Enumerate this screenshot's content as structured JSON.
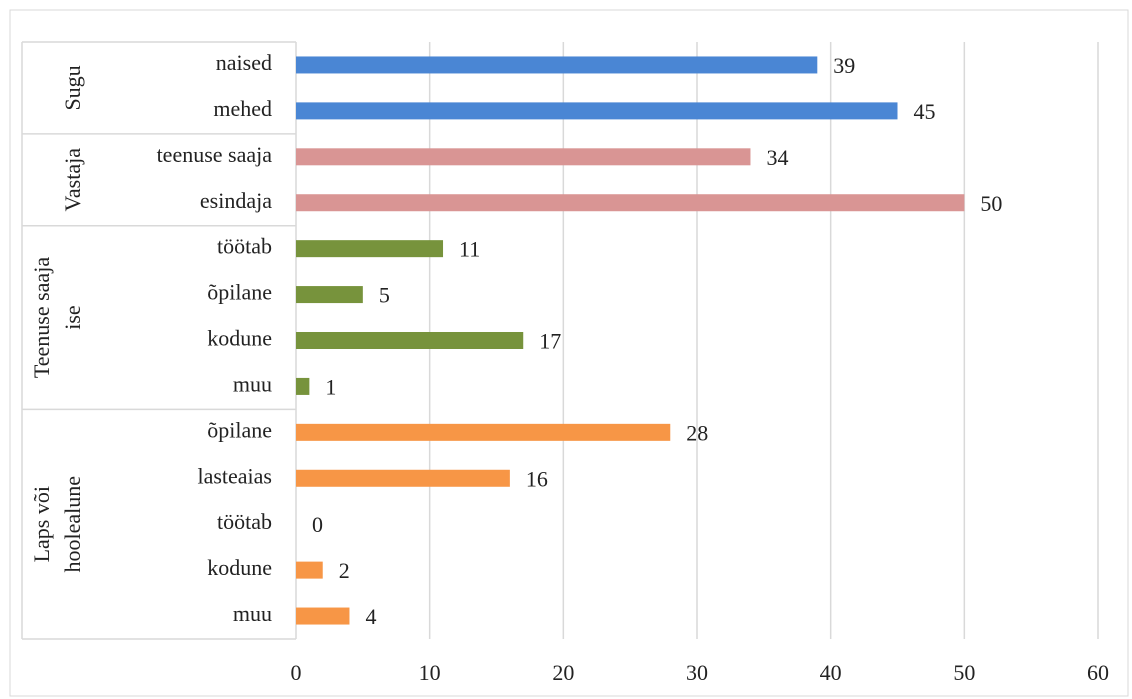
{
  "chart_data": {
    "type": "bar",
    "orientation": "horizontal",
    "groups": [
      {
        "name": [
          "Sugu"
        ],
        "color": "#4a86d4",
        "categories": [
          "naised",
          "mehed"
        ],
        "values": [
          39,
          45
        ]
      },
      {
        "name": [
          "Vastaja"
        ],
        "color": "#d99594",
        "categories": [
          "teenuse saaja",
          "esindaja"
        ],
        "values": [
          34,
          50
        ]
      },
      {
        "name": [
          "Teenuse saaja",
          "ise"
        ],
        "color": "#77933c",
        "categories": [
          "töötab",
          "õpilane",
          "kodune",
          "muu"
        ],
        "values": [
          11,
          5,
          17,
          1
        ]
      },
      {
        "name": [
          "Laps või",
          "hoolealune"
        ],
        "color": "#f79646",
        "categories": [
          "õpilane",
          "lasteaias",
          "töötab",
          "kodune",
          "muu"
        ],
        "values": [
          28,
          16,
          0,
          2,
          4
        ]
      }
    ],
    "xlim": [
      0,
      60
    ],
    "xticks": [
      0,
      10,
      20,
      30,
      40,
      50,
      60
    ],
    "grid": true
  }
}
